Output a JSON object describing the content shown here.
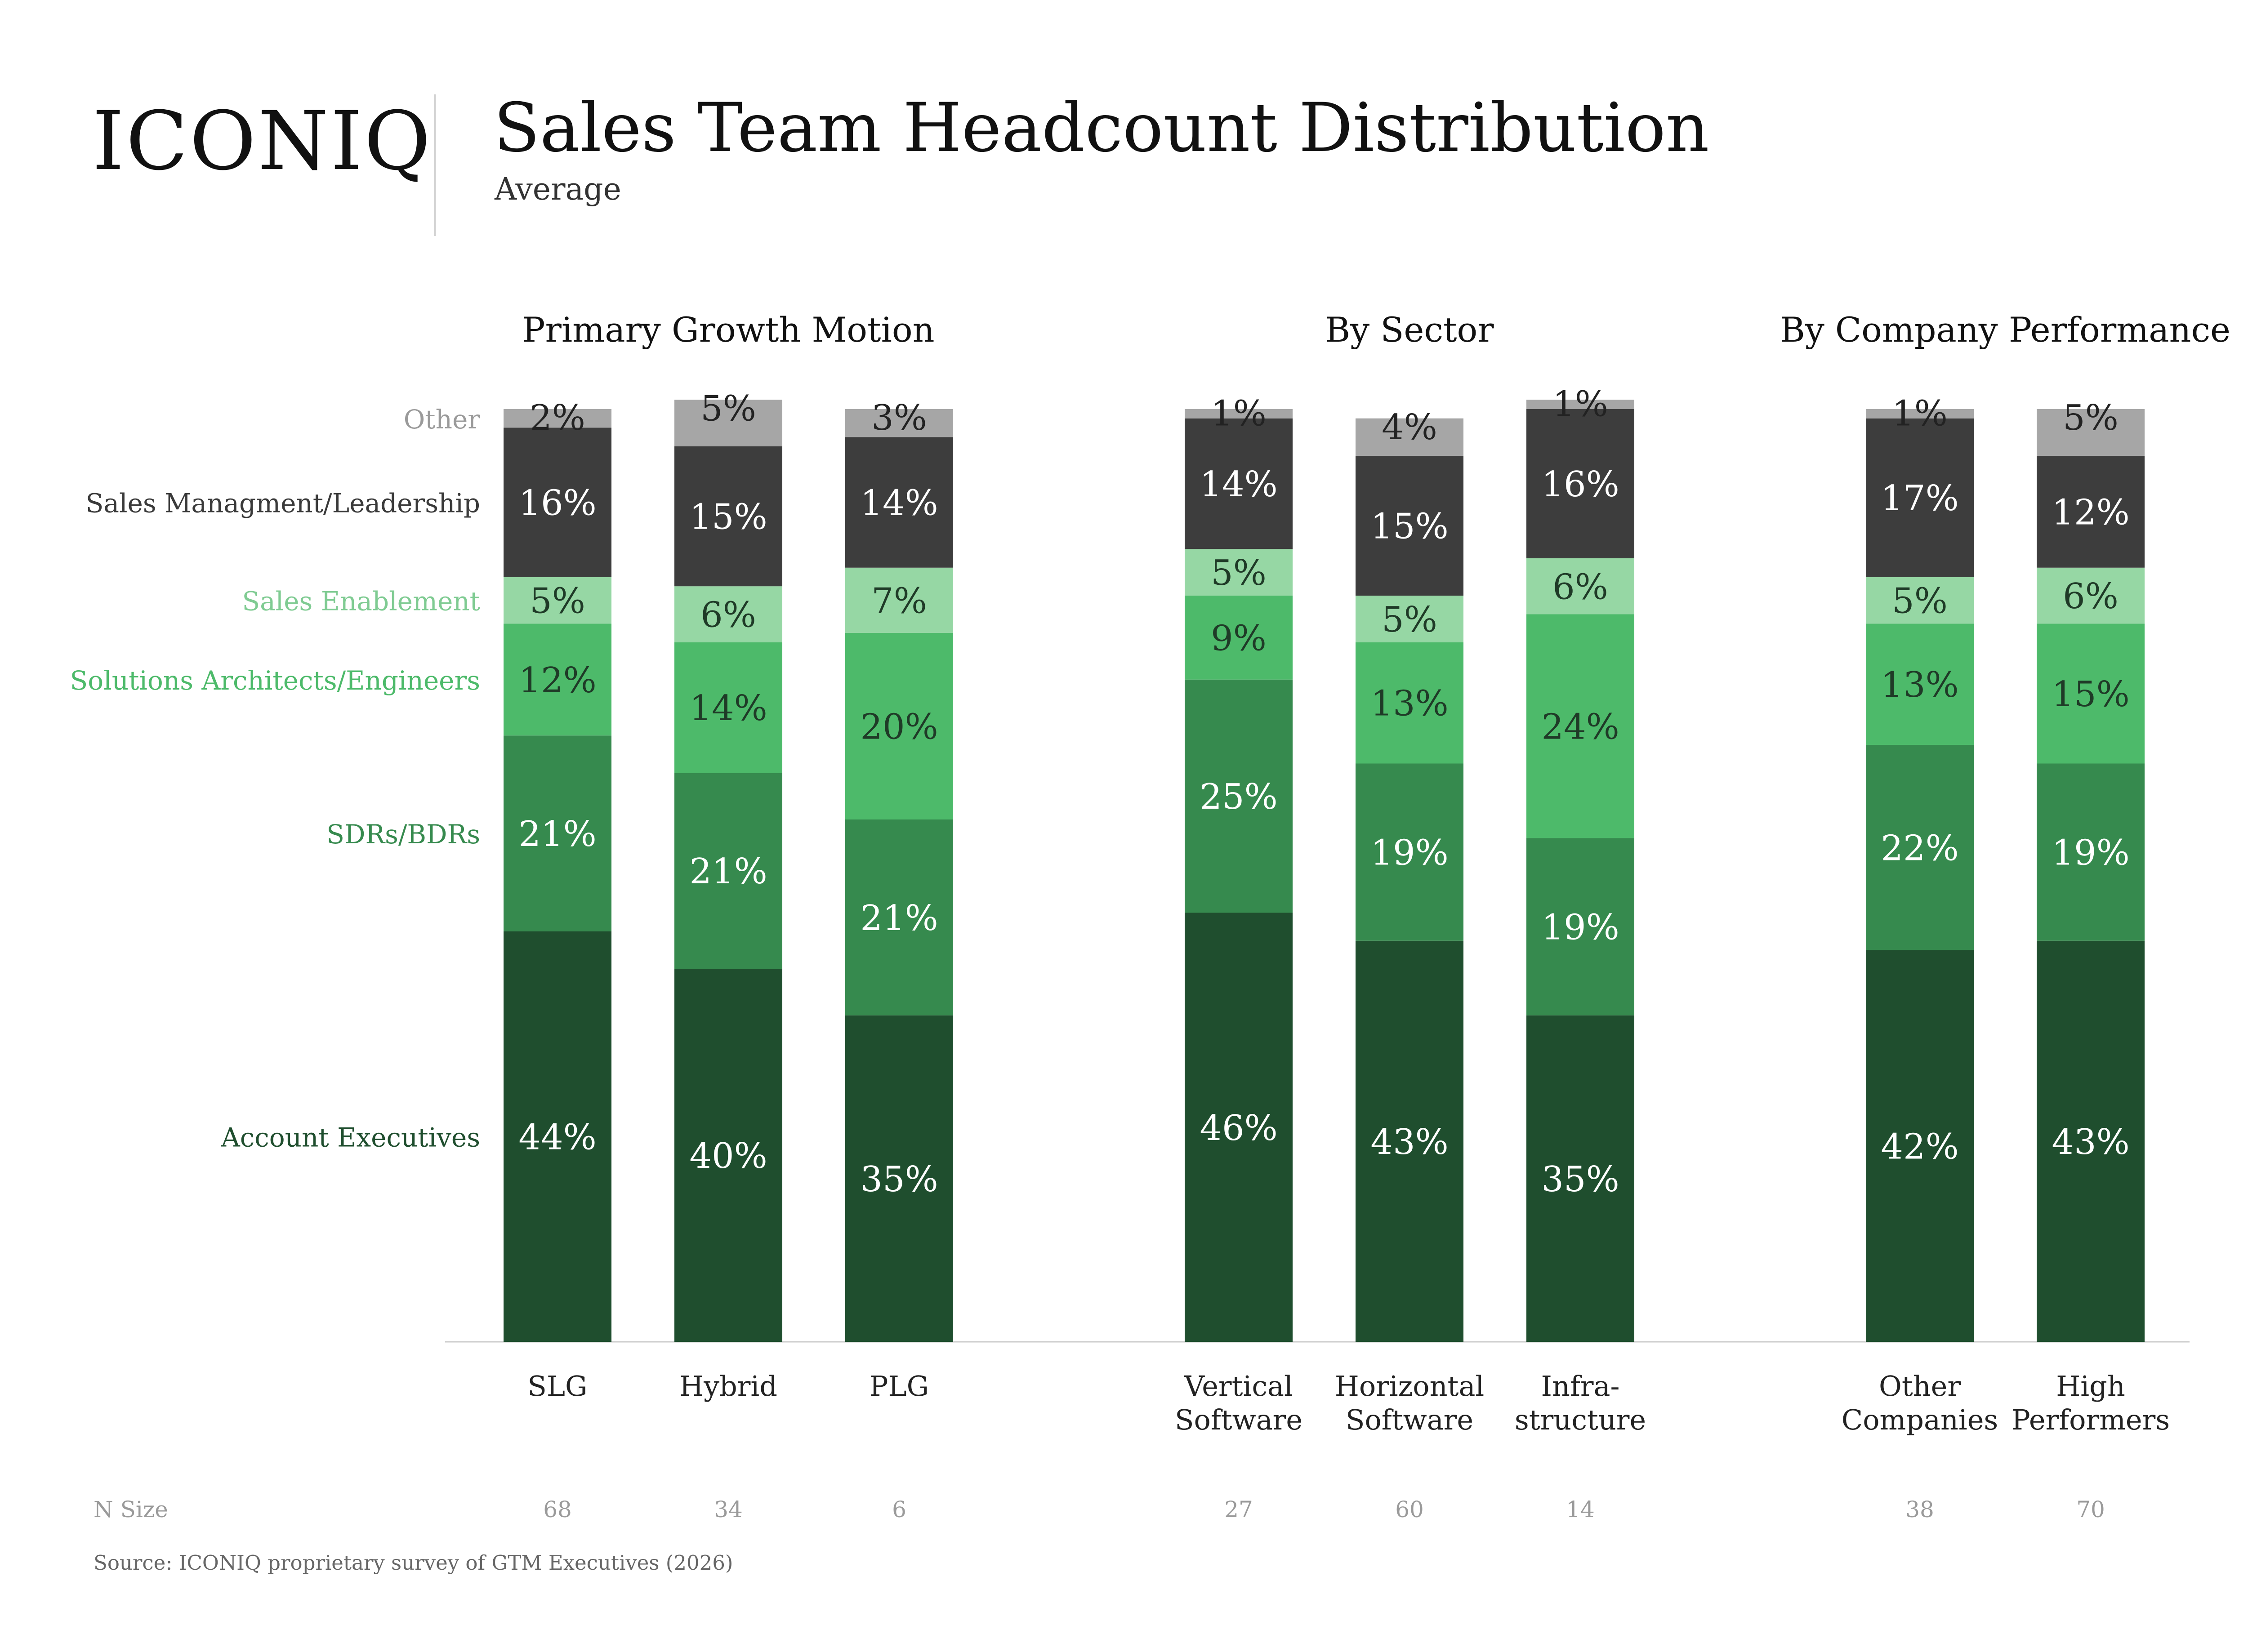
{
  "header": {
    "logo_text": "ICONIQ",
    "title": "Sales Team Headcount Distribution",
    "subtitle": "Average"
  },
  "footer": {
    "source": "Source: ICONIQ proprietary survey of GTM Executives (2026)"
  },
  "chart_data": {
    "type": "bar",
    "stacked": true,
    "unit": "%",
    "groups": [
      {
        "title": "Primary Growth Motion",
        "bars": [
          0,
          1,
          2
        ]
      },
      {
        "title": "By Sector",
        "bars": [
          3,
          4,
          5
        ]
      },
      {
        "title": "By Company Performance",
        "bars": [
          6,
          7
        ]
      }
    ],
    "categories": [
      [
        "SLG"
      ],
      [
        "Hybrid"
      ],
      [
        "PLG"
      ],
      [
        "Vertical",
        "Software"
      ],
      [
        "Horizontal",
        "Software"
      ],
      [
        "Infra-",
        "structure"
      ],
      [
        "Other",
        "Companies"
      ],
      [
        "High",
        "Performers"
      ]
    ],
    "n_size_label": "N Size",
    "n_sizes": [
      "68",
      "34",
      "6",
      "27",
      "60",
      "14",
      "38",
      "70"
    ],
    "series": [
      {
        "name": "Account Executives",
        "color": "#1f4e2e",
        "label_color": "#ffffff",
        "values": [
          44,
          40,
          35,
          46,
          43,
          35,
          42,
          43
        ]
      },
      {
        "name": "SDRs/BDRs",
        "color": "#368a4e",
        "label_color": "#ffffff",
        "values": [
          21,
          21,
          21,
          25,
          19,
          19,
          22,
          19
        ]
      },
      {
        "name": "Solutions Architects/Engineers",
        "color": "#4dba6a",
        "label_color": "#1f3a27",
        "values": [
          12,
          14,
          20,
          9,
          13,
          24,
          13,
          15
        ]
      },
      {
        "name": "Sales Enablement",
        "color": "#96d7a4",
        "label_color": "#1f3a27",
        "values": [
          5,
          6,
          7,
          5,
          5,
          6,
          5,
          6
        ]
      },
      {
        "name": "Sales Managment/Leadership",
        "color": "#3d3d3d",
        "label_color": "#ffffff",
        "values": [
          16,
          15,
          14,
          14,
          15,
          16,
          17,
          12
        ]
      },
      {
        "name": "Other",
        "color": "#a6a6a6",
        "label_color": "#222222",
        "values": [
          2,
          5,
          3,
          1,
          4,
          1,
          1,
          5
        ]
      }
    ],
    "legend_label_colors": [
      "#1f4e2e",
      "#368a4e",
      "#4dba6a",
      "#7fcb92",
      "#3a3a3a",
      "#9a9a9a"
    ],
    "legend_placement": "left"
  }
}
